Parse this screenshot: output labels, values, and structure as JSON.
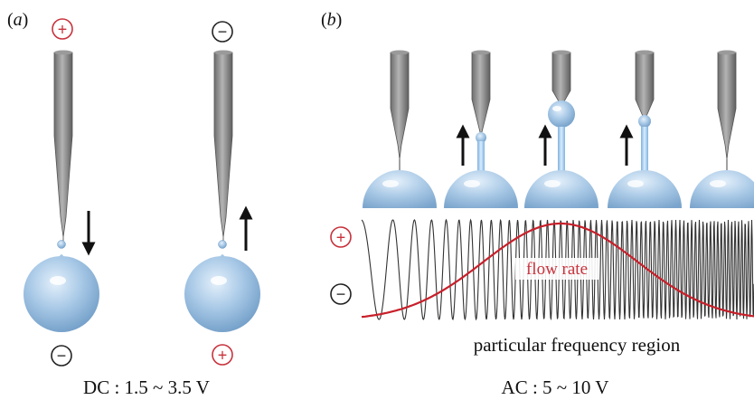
{
  "panels": {
    "a": {
      "label_open": "(",
      "label_letter": "a",
      "label_close": ")"
    },
    "b": {
      "label_open": "(",
      "label_letter": "b",
      "label_close": ")"
    }
  },
  "signs": {
    "plus": "+",
    "minus": "−"
  },
  "texts": {
    "flow_rate": "flow rate",
    "frequency_region": "particular frequency region",
    "dc_caption": "DC : 1.5 ~ 3.5 V",
    "ac_caption": "AC : 5 ~ 10 V"
  },
  "colors": {
    "positive": "#c8323c",
    "negative": "#222222",
    "sphere": "#a9c9e6",
    "needle": "#8e8e8e",
    "flow_curve": "#c8202a",
    "wave": "#333333"
  }
}
